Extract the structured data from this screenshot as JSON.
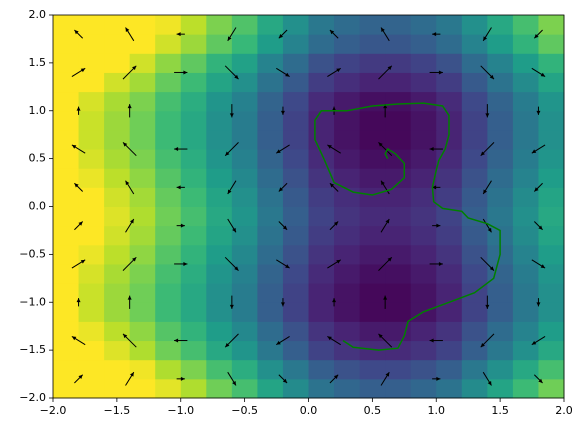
{
  "chart_data": {
    "type": "heatmap",
    "colormap": "viridis",
    "clim": [
      0,
      1
    ],
    "xlim": [
      -2,
      2
    ],
    "ylim": [
      -2,
      2
    ],
    "xticks": [
      {
        "value": -2,
        "label": "−2.0"
      },
      {
        "value": -1.5,
        "label": "−1.5"
      },
      {
        "value": -1,
        "label": "−1.0"
      },
      {
        "value": -0.5,
        "label": "−0.5"
      },
      {
        "value": 0,
        "label": "0.0"
      },
      {
        "value": 0.5,
        "label": "0.5"
      },
      {
        "value": 1,
        "label": "1.0"
      },
      {
        "value": 1.5,
        "label": "1.5"
      },
      {
        "value": 2,
        "label": "2.0"
      }
    ],
    "yticks": [
      {
        "value": -2,
        "label": "−2.0"
      },
      {
        "value": -1.5,
        "label": "−1.5"
      },
      {
        "value": -1,
        "label": "−1.0"
      },
      {
        "value": -0.5,
        "label": "−0.5"
      },
      {
        "value": 0,
        "label": "0.0"
      },
      {
        "value": 0.5,
        "label": "0.5"
      },
      {
        "value": 1,
        "label": "1.0"
      },
      {
        "value": 1.5,
        "label": "1.5"
      },
      {
        "value": 2,
        "label": "2.0"
      }
    ],
    "z": [
      [
        1,
        1,
        1,
        1,
        0.96,
        0.88,
        0.78,
        0.7,
        0.58,
        0.48,
        0.38,
        0.33,
        0.3,
        0.3,
        0.33,
        0.38,
        0.48,
        0.58,
        0.68,
        0.78
      ],
      [
        1,
        1,
        1,
        0.98,
        0.88,
        0.8,
        0.7,
        0.62,
        0.5,
        0.4,
        0.3,
        0.25,
        0.22,
        0.22,
        0.25,
        0.3,
        0.4,
        0.5,
        0.6,
        0.7
      ],
      [
        1,
        1,
        0.95,
        0.88,
        0.78,
        0.7,
        0.6,
        0.52,
        0.4,
        0.3,
        0.2,
        0.15,
        0.12,
        0.12,
        0.15,
        0.2,
        0.3,
        0.4,
        0.5,
        0.6
      ],
      [
        1,
        0.97,
        0.9,
        0.83,
        0.73,
        0.65,
        0.55,
        0.47,
        0.35,
        0.25,
        0.15,
        0.1,
        0.07,
        0.07,
        0.1,
        0.15,
        0.25,
        0.35,
        0.45,
        0.55
      ],
      [
        1,
        0.92,
        0.85,
        0.78,
        0.68,
        0.6,
        0.5,
        0.42,
        0.3,
        0.2,
        0.1,
        0.05,
        0.02,
        0.02,
        0.05,
        0.1,
        0.2,
        0.3,
        0.4,
        0.5
      ],
      [
        1,
        0.92,
        0.85,
        0.78,
        0.68,
        0.6,
        0.5,
        0.42,
        0.3,
        0.2,
        0.1,
        0.05,
        0.02,
        0.02,
        0.05,
        0.1,
        0.2,
        0.3,
        0.4,
        0.5
      ],
      [
        1,
        0.94,
        0.87,
        0.8,
        0.7,
        0.62,
        0.52,
        0.44,
        0.32,
        0.22,
        0.12,
        0.07,
        0.04,
        0.04,
        0.07,
        0.12,
        0.22,
        0.32,
        0.42,
        0.52
      ],
      [
        1,
        0.97,
        0.9,
        0.83,
        0.73,
        0.65,
        0.55,
        0.47,
        0.35,
        0.25,
        0.15,
        0.1,
        0.07,
        0.07,
        0.1,
        0.15,
        0.25,
        0.35,
        0.45,
        0.55
      ],
      [
        1,
        1,
        0.93,
        0.86,
        0.76,
        0.68,
        0.58,
        0.5,
        0.38,
        0.28,
        0.18,
        0.13,
        0.1,
        0.1,
        0.13,
        0.18,
        0.28,
        0.38,
        0.48,
        0.58
      ],
      [
        1,
        1,
        0.95,
        0.88,
        0.78,
        0.7,
        0.6,
        0.52,
        0.4,
        0.3,
        0.2,
        0.15,
        0.12,
        0.12,
        0.15,
        0.2,
        0.3,
        0.4,
        0.5,
        0.6
      ],
      [
        1,
        1,
        0.93,
        0.86,
        0.76,
        0.68,
        0.58,
        0.5,
        0.38,
        0.28,
        0.18,
        0.13,
        0.1,
        0.1,
        0.13,
        0.18,
        0.28,
        0.38,
        0.48,
        0.58
      ],
      [
        1,
        0.97,
        0.9,
        0.83,
        0.73,
        0.65,
        0.55,
        0.47,
        0.35,
        0.25,
        0.15,
        0.1,
        0.07,
        0.07,
        0.1,
        0.15,
        0.25,
        0.35,
        0.45,
        0.55
      ],
      [
        1,
        0.94,
        0.87,
        0.8,
        0.7,
        0.62,
        0.52,
        0.44,
        0.32,
        0.22,
        0.12,
        0.07,
        0.04,
        0.04,
        0.07,
        0.12,
        0.22,
        0.32,
        0.42,
        0.52
      ],
      [
        1,
        0.92,
        0.85,
        0.78,
        0.68,
        0.6,
        0.5,
        0.42,
        0.3,
        0.2,
        0.1,
        0.05,
        0.02,
        0.02,
        0.05,
        0.1,
        0.2,
        0.3,
        0.4,
        0.5
      ],
      [
        1,
        0.92,
        0.85,
        0.78,
        0.68,
        0.6,
        0.5,
        0.42,
        0.3,
        0.2,
        0.1,
        0.05,
        0.02,
        0.02,
        0.05,
        0.1,
        0.2,
        0.3,
        0.4,
        0.5
      ],
      [
        1,
        0.94,
        0.87,
        0.8,
        0.7,
        0.62,
        0.52,
        0.44,
        0.32,
        0.22,
        0.12,
        0.07,
        0.04,
        0.04,
        0.07,
        0.12,
        0.22,
        0.32,
        0.42,
        0.52
      ],
      [
        1,
        1,
        0.93,
        0.86,
        0.76,
        0.68,
        0.58,
        0.5,
        0.38,
        0.28,
        0.18,
        0.13,
        0.1,
        0.1,
        0.13,
        0.18,
        0.28,
        0.38,
        0.48,
        0.58
      ],
      [
        1,
        1,
        1,
        0.93,
        0.83,
        0.75,
        0.65,
        0.57,
        0.45,
        0.35,
        0.25,
        0.2,
        0.17,
        0.17,
        0.2,
        0.25,
        0.35,
        0.45,
        0.55,
        0.65
      ],
      [
        1,
        1,
        1,
        1,
        0.93,
        0.85,
        0.75,
        0.67,
        0.55,
        0.45,
        0.35,
        0.3,
        0.27,
        0.27,
        0.3,
        0.35,
        0.45,
        0.55,
        0.65,
        0.75
      ],
      [
        1,
        1,
        1,
        1,
        0.98,
        0.9,
        0.8,
        0.72,
        0.6,
        0.5,
        0.4,
        0.35,
        0.32,
        0.32,
        0.35,
        0.4,
        0.5,
        0.6,
        0.7,
        0.8
      ]
    ],
    "quiver": {
      "color": "#000000",
      "u": [
        [
          0.59,
          0.59,
          0.59,
          0.59,
          0.59,
          0.59,
          0.59,
          0.59,
          0.59,
          0.59
        ],
        [
          -0.95,
          -0.95,
          -0.95,
          -0.95,
          -0.95,
          -0.95,
          -0.95,
          -0.95,
          -0.95,
          -0.95
        ],
        [
          0,
          0,
          0,
          0,
          0,
          0,
          0,
          0,
          0,
          0
        ],
        [
          0.95,
          0.95,
          0.95,
          0.95,
          0.95,
          0.95,
          0.95,
          0.95,
          0.95,
          0.95
        ],
        [
          0.59,
          0.59,
          0.59,
          0.59,
          0.59,
          0.59,
          0.59,
          0.59,
          0.59,
          0.59
        ],
        [
          -0.59,
          -0.59,
          -0.59,
          -0.59,
          -0.59,
          -0.59,
          -0.59,
          -0.59,
          -0.59,
          -0.59
        ],
        [
          -0.95,
          -0.95,
          -0.95,
          -0.95,
          -0.95,
          -0.95,
          -0.95,
          -0.95,
          -0.95,
          -0.95
        ],
        [
          0,
          0,
          0,
          0,
          0,
          0,
          0,
          0,
          0,
          0
        ],
        [
          0.95,
          0.95,
          0.95,
          0.95,
          0.95,
          0.95,
          0.95,
          0.95,
          0.95,
          0.95
        ],
        [
          -0.59,
          -0.59,
          -0.59,
          -0.59,
          -0.59,
          -0.59,
          -0.59,
          -0.59,
          -0.59,
          -0.59
        ]
      ],
      "v": [
        [
          0.59,
          0.95,
          0,
          -0.95,
          -0.59,
          0.59,
          0.95,
          0,
          -0.95,
          -0.59
        ],
        [
          0.59,
          0.95,
          0,
          -0.95,
          -0.59,
          0.59,
          0.95,
          0,
          -0.95,
          -0.59
        ],
        [
          0.59,
          0.95,
          0,
          -0.95,
          -0.59,
          0.59,
          0.95,
          0,
          -0.95,
          -0.59
        ],
        [
          0.59,
          0.95,
          0,
          -0.95,
          -0.59,
          0.59,
          0.95,
          0,
          -0.95,
          -0.59
        ],
        [
          0.59,
          0.95,
          0,
          -0.95,
          -0.59,
          0.59,
          0.95,
          0,
          -0.95,
          -0.59
        ],
        [
          0.59,
          0.95,
          0,
          -0.95,
          -0.59,
          0.59,
          0.95,
          0,
          -0.95,
          -0.59
        ],
        [
          0.59,
          0.95,
          0,
          -0.95,
          -0.59,
          0.59,
          0.95,
          0,
          -0.95,
          -0.59
        ],
        [
          0.59,
          0.95,
          0,
          -0.95,
          -0.59,
          0.59,
          0.95,
          0,
          -0.95,
          -0.59
        ],
        [
          0.59,
          0.95,
          0,
          -0.95,
          -0.59,
          0.59,
          0.95,
          0,
          -0.95,
          -0.59
        ],
        [
          0.59,
          0.95,
          0,
          -0.95,
          -0.59,
          0.59,
          0.95,
          0,
          -0.95,
          -0.59
        ]
      ]
    },
    "line": {
      "color": "#008000",
      "x": [
        0.27,
        0.35,
        0.55,
        0.7,
        0.75,
        0.78,
        0.9,
        1.1,
        1.3,
        1.45,
        1.5,
        1.5,
        1.4,
        1.25,
        1.2,
        1.05,
        0.98,
        0.97,
        1.0,
        1.02,
        1.07,
        1.1,
        1.1,
        1.05,
        0.9,
        0.7,
        0.5,
        0.3,
        0.1,
        0.05,
        0.05,
        0.12,
        0.2,
        0.35,
        0.5,
        0.65,
        0.75,
        0.75,
        0.68,
        0.62,
        0.6,
        0.62
      ],
      "y": [
        -1.4,
        -1.47,
        -1.5,
        -1.48,
        -1.35,
        -1.2,
        -1.1,
        -1.0,
        -0.9,
        -0.75,
        -0.5,
        -0.25,
        -0.18,
        -0.12,
        -0.05,
        -0.02,
        0.05,
        0.2,
        0.38,
        0.48,
        0.6,
        0.75,
        0.95,
        1.05,
        1.08,
        1.07,
        1.05,
        1.0,
        1.0,
        0.9,
        0.7,
        0.5,
        0.25,
        0.15,
        0.12,
        0.18,
        0.3,
        0.45,
        0.55,
        0.6,
        0.55,
        0.5
      ]
    }
  }
}
